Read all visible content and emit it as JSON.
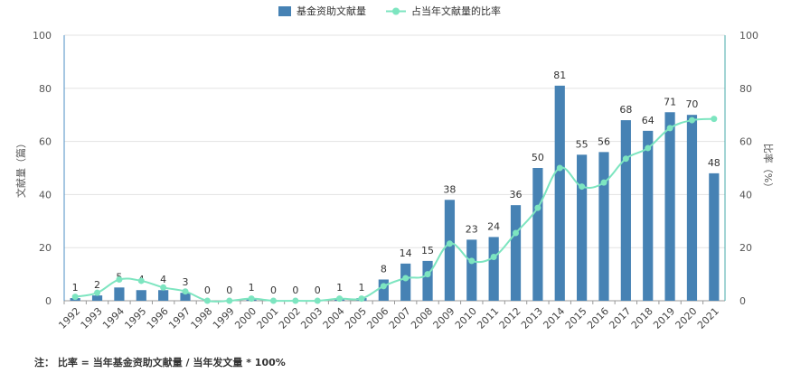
{
  "chart_data": {
    "type": "bar",
    "categories": [
      "1992",
      "1993",
      "1994",
      "1995",
      "1996",
      "1997",
      "1998",
      "1999",
      "2000",
      "2001",
      "2002",
      "2003",
      "2004",
      "2005",
      "2006",
      "2007",
      "2008",
      "2009",
      "2010",
      "2011",
      "2012",
      "2013",
      "2014",
      "2015",
      "2016",
      "2017",
      "2018",
      "2019",
      "2020",
      "2021"
    ],
    "series": [
      {
        "name": "基金资助文献量",
        "kind": "bar",
        "axis": "left",
        "color": "#4682b4",
        "values": [
          1,
          2,
          5,
          4,
          4,
          3,
          0,
          0,
          1,
          0,
          0,
          0,
          1,
          1,
          8,
          14,
          15,
          38,
          23,
          24,
          36,
          50,
          81,
          55,
          56,
          68,
          64,
          71,
          70,
          48
        ]
      },
      {
        "name": "占当年文献量的比率",
        "kind": "line",
        "axis": "right",
        "color": "#7de5c0",
        "values": [
          1.5,
          3,
          8,
          7.5,
          5,
          3.5,
          0,
          0,
          0.8,
          0,
          0,
          0,
          0.8,
          0.8,
          5.5,
          8.5,
          10,
          21.5,
          15,
          16.5,
          25.5,
          35,
          50,
          43,
          44.5,
          53.5,
          57.5,
          65,
          68,
          68.5
        ]
      }
    ],
    "ylabel": "文献量（篇）",
    "y2label": "比率（%）",
    "ylim": [
      0,
      100
    ],
    "y2lim": [
      0,
      100
    ],
    "yticks": [
      "0",
      "20",
      "40",
      "60",
      "80",
      "100"
    ],
    "y2ticks": [
      "0",
      "20",
      "40",
      "60",
      "80",
      "100"
    ],
    "grid": true,
    "legend": "top-center"
  },
  "note": "注：  比率 = 当年基金资助文献量 / 当年发文量 * 100%"
}
